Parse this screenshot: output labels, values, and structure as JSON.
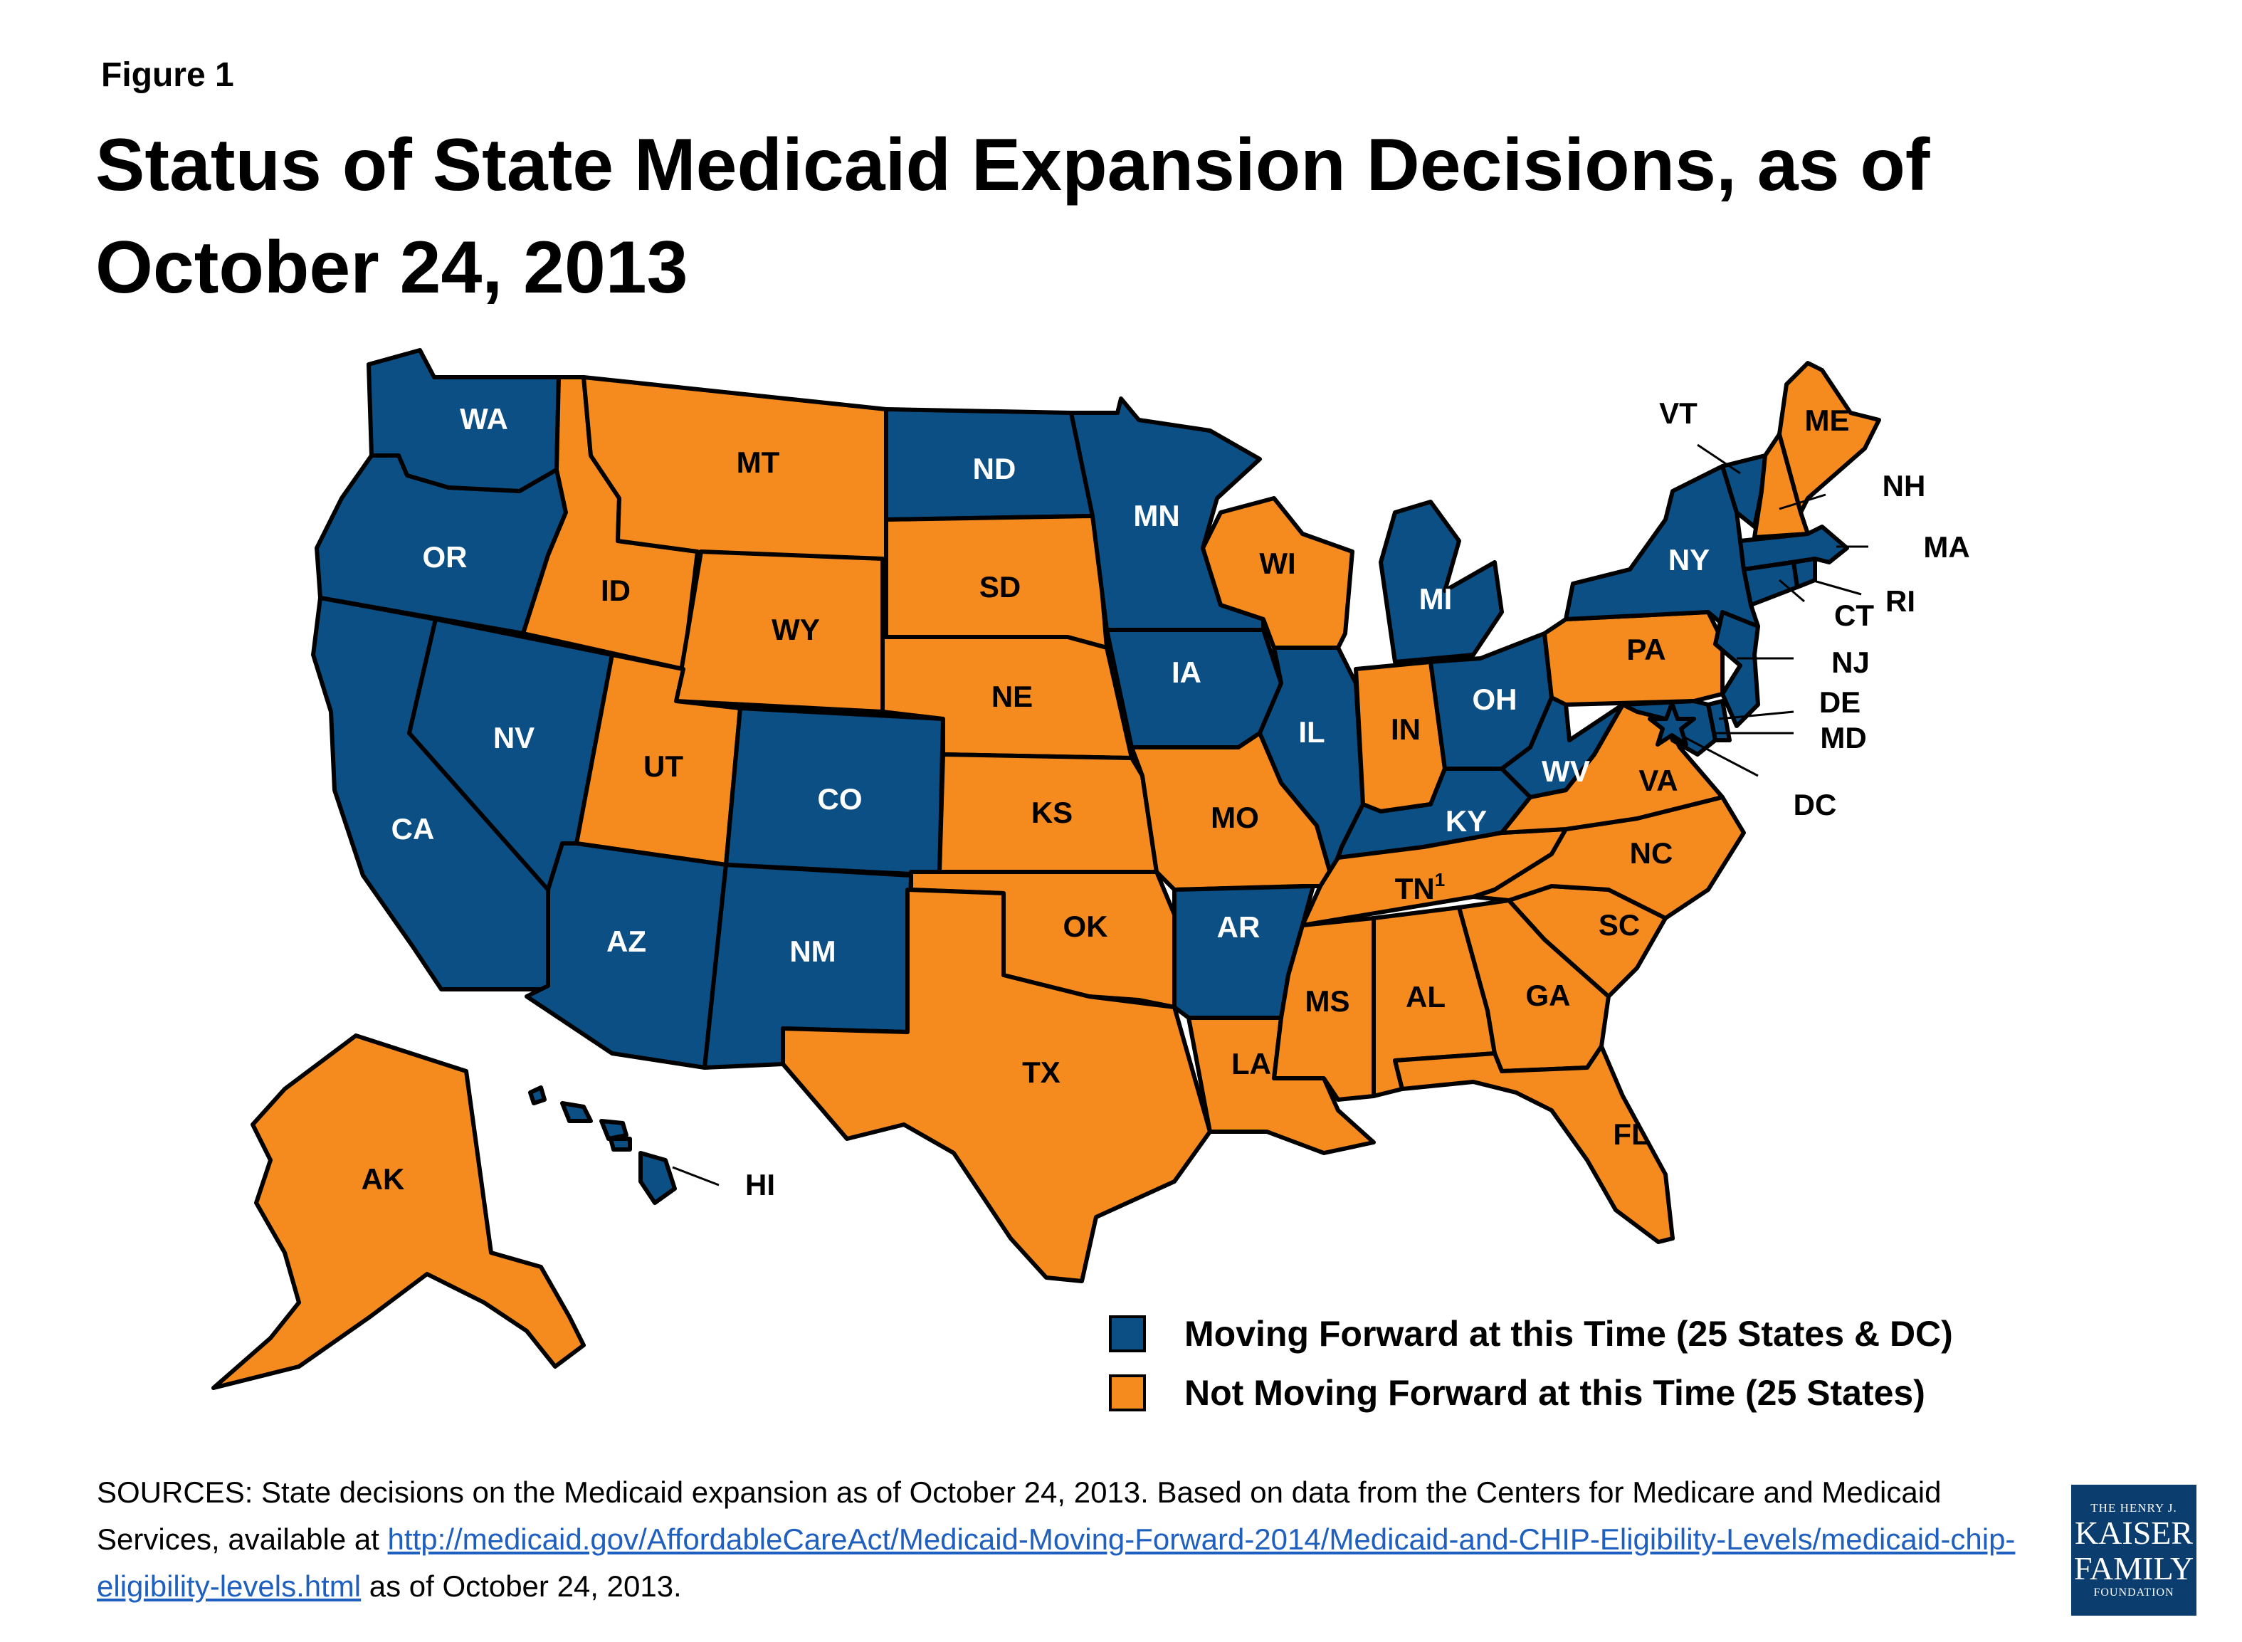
{
  "figure_label": "Figure 1",
  "title": "Status of State Medicaid Expansion Decisions, as of October 24, 2013",
  "colors": {
    "moving_forward": "#0b4f85",
    "not_moving_forward": "#f58a1f"
  },
  "legend": [
    {
      "status": "moving",
      "label": "Moving Forward at this Time (25 States & DC)"
    },
    {
      "status": "not",
      "label": "Not Moving Forward at this Time (25 States)"
    }
  ],
  "states": {
    "WA": {
      "label": "WA",
      "status": "moving"
    },
    "OR": {
      "label": "OR",
      "status": "moving"
    },
    "CA": {
      "label": "CA",
      "status": "moving"
    },
    "NV": {
      "label": "NV",
      "status": "moving"
    },
    "ID": {
      "label": "ID",
      "status": "not"
    },
    "MT": {
      "label": "MT",
      "status": "not"
    },
    "WY": {
      "label": "WY",
      "status": "not"
    },
    "UT": {
      "label": "UT",
      "status": "not"
    },
    "CO": {
      "label": "CO",
      "status": "moving"
    },
    "AZ": {
      "label": "AZ",
      "status": "moving"
    },
    "NM": {
      "label": "NM",
      "status": "moving"
    },
    "ND": {
      "label": "ND",
      "status": "moving"
    },
    "SD": {
      "label": "SD",
      "status": "not"
    },
    "NE": {
      "label": "NE",
      "status": "not"
    },
    "KS": {
      "label": "KS",
      "status": "not"
    },
    "OK": {
      "label": "OK",
      "status": "not"
    },
    "TX": {
      "label": "TX",
      "status": "not"
    },
    "MN": {
      "label": "MN",
      "status": "moving"
    },
    "IA": {
      "label": "IA",
      "status": "moving"
    },
    "MO": {
      "label": "MO",
      "status": "not"
    },
    "AR": {
      "label": "AR",
      "status": "moving"
    },
    "LA": {
      "label": "LA",
      "status": "not"
    },
    "WI": {
      "label": "WI",
      "status": "not"
    },
    "IL": {
      "label": "IL",
      "status": "moving"
    },
    "MI": {
      "label": "MI",
      "status": "moving"
    },
    "IN": {
      "label": "IN",
      "status": "not"
    },
    "OH": {
      "label": "OH",
      "status": "moving"
    },
    "KY": {
      "label": "KY",
      "status": "moving"
    },
    "TN": {
      "label": "TN",
      "sup": "1",
      "status": "not"
    },
    "MS": {
      "label": "MS",
      "status": "not"
    },
    "AL": {
      "label": "AL",
      "status": "not"
    },
    "GA": {
      "label": "GA",
      "status": "not"
    },
    "FL": {
      "label": "FL",
      "status": "not"
    },
    "SC": {
      "label": "SC",
      "status": "not"
    },
    "NC": {
      "label": "NC",
      "status": "not"
    },
    "VA": {
      "label": "VA",
      "status": "not"
    },
    "WV": {
      "label": "WV",
      "status": "moving"
    },
    "PA": {
      "label": "PA",
      "status": "not"
    },
    "NY": {
      "label": "NY",
      "status": "moving"
    },
    "VT": {
      "label": "VT",
      "status": "moving"
    },
    "NH": {
      "label": "NH",
      "status": "not"
    },
    "ME": {
      "label": "ME",
      "status": "not"
    },
    "MA": {
      "label": "MA",
      "status": "moving"
    },
    "RI": {
      "label": "RI",
      "status": "moving"
    },
    "CT": {
      "label": "CT",
      "status": "moving"
    },
    "NJ": {
      "label": "NJ",
      "status": "moving"
    },
    "DE": {
      "label": "DE",
      "status": "moving"
    },
    "MD": {
      "label": "MD",
      "status": "moving"
    },
    "DC": {
      "label": "DC",
      "status": "moving"
    },
    "AK": {
      "label": "AK",
      "status": "not"
    },
    "HI": {
      "label": "HI",
      "status": "moving"
    }
  },
  "sources": {
    "text_before": "SOURCES: State decisions on the Medicaid expansion as of October 24, 2013. Based on data from the Centers for Medicare and Medicaid Services, available at ",
    "link": "http://medicaid.gov/AffordableCareAct/Medicaid-Moving-Forward-2014/Medicaid-and-CHIP-Eligibility-Levels/medicaid-chip-eligibility-levels.html",
    "text_after": " as of October 24, 2013."
  },
  "logo": {
    "line1": "THE HENRY J.",
    "line2": "KAISER",
    "line3": "FAMILY",
    "line4": "FOUNDATION"
  }
}
